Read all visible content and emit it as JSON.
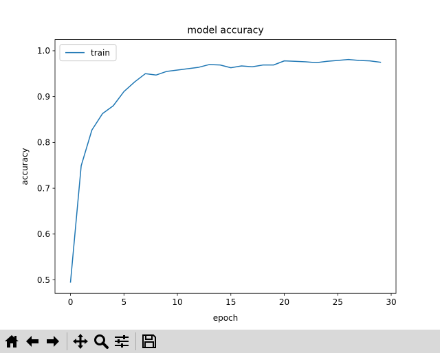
{
  "chart_data": {
    "type": "line",
    "title": "model accuracy",
    "xlabel": "epoch",
    "ylabel": "accuracy",
    "xlim": [
      -1.45,
      30.45
    ],
    "ylim": [
      0.4705,
      1.0245
    ],
    "xticks": [
      "0",
      "5",
      "10",
      "15",
      "20",
      "25",
      "30"
    ],
    "yticks": [
      "0.5",
      "0.6",
      "0.7",
      "0.8",
      "0.9",
      "1.0"
    ],
    "grid": false,
    "legend": "top-left",
    "series": [
      {
        "name": "train",
        "color": "#1f77b4",
        "x": [
          0,
          1,
          2,
          3,
          4,
          5,
          6,
          7,
          8,
          9,
          10,
          11,
          12,
          13,
          14,
          15,
          16,
          17,
          18,
          19,
          20,
          21,
          22,
          23,
          24,
          25,
          26,
          27,
          28,
          29
        ],
        "values": [
          0.495,
          0.749,
          0.827,
          0.863,
          0.88,
          0.911,
          0.932,
          0.95,
          0.947,
          0.955,
          0.958,
          0.961,
          0.964,
          0.97,
          0.969,
          0.963,
          0.967,
          0.965,
          0.969,
          0.969,
          0.978,
          0.977,
          0.976,
          0.974,
          0.977,
          0.979,
          0.981,
          0.979,
          0.978,
          0.975
        ]
      }
    ]
  },
  "toolbar": {
    "buttons": [
      {
        "icon": "home-icon"
      },
      {
        "icon": "back-arrow-icon"
      },
      {
        "icon": "forward-arrow-icon"
      },
      {
        "icon": "pan-move-icon"
      },
      {
        "icon": "zoom-magnifier-icon"
      },
      {
        "icon": "configure-subplots-icon"
      },
      {
        "icon": "save-floppy-icon"
      }
    ]
  }
}
